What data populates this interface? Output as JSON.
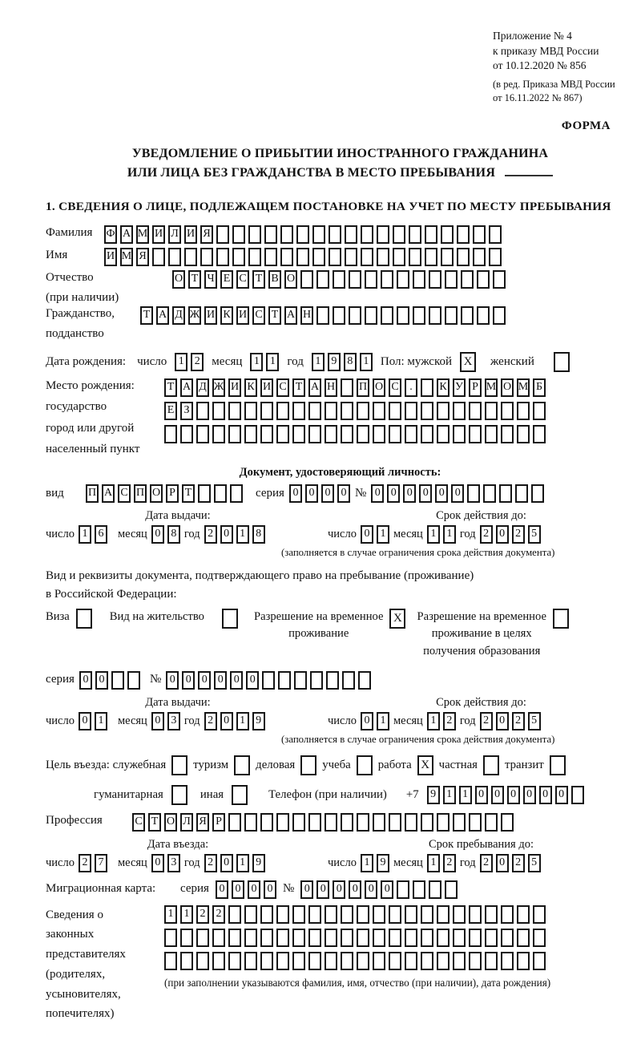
{
  "ref": {
    "l1": "Приложение № 4",
    "l2": "к приказу МВД России",
    "l3": "от 10.12.2020 № 856",
    "l4": "(в ред. Приказа МВД России",
    "l5": "от 16.11.2022 № 867)"
  },
  "form_label": "ФОРМА",
  "title": {
    "l1": "УВЕДОМЛЕНИЕ О ПРИБЫТИИ ИНОСТРАННОГО ГРАЖДАНИНА",
    "l2": "ИЛИ ЛИЦА БЕЗ ГРАЖДАНСТВА В МЕСТО ПРЕБЫВАНИЯ"
  },
  "section1_heading": "1. СВЕДЕНИЯ О ЛИЦЕ, ПОДЛЕЖАЩЕМ ПОСТАНОВКЕ НА УЧЕТ ПО МЕСТУ ПРЕБЫВАНИЯ",
  "labels": {
    "day": "число",
    "month": "месяц",
    "year": "год",
    "series": "серия",
    "number": "№",
    "issue_date": "Дата выдачи:",
    "valid_until": "Срок действия до:",
    "limit_note": "(заполняется в случае ограничения срока действия документа)"
  },
  "surname": {
    "label": "Фамилия",
    "cells": {
      "value": "ФАМИЛИЯ",
      "length": 25
    }
  },
  "firstname": {
    "label": "Имя",
    "cells": {
      "value": "ИМЯ",
      "length": 25
    }
  },
  "patronymic": {
    "label1": "Отчество",
    "label2": "(при наличии)",
    "cells": {
      "value": "ОТЧЕСТВО",
      "length": 21
    }
  },
  "citizenship": {
    "label1": "Гражданство,",
    "label2": "подданство",
    "cells": {
      "value": "ТАДЖИКИСТАН",
      "length": 23
    }
  },
  "birth_date": {
    "label": "Дата рождения:",
    "day": {
      "value": "12",
      "length": 2
    },
    "month": {
      "value": "11",
      "length": 2
    },
    "year": {
      "value": "1981",
      "length": 4
    },
    "sex_label": "Пол: мужской",
    "male_box": {
      "value": "X",
      "length": 1
    },
    "female_label": "женский",
    "female_box": {
      "value": "",
      "length": 1
    }
  },
  "birth_place": {
    "label1": "Место рождения:",
    "label2": "государство",
    "label3": "город или другой",
    "label4": "населенный пункт",
    "row1": {
      "value": "ТАДЖИКИСТАН ПОС. КУРМОМБ",
      "length": 24
    },
    "row2": {
      "value": "ЕЗ",
      "length": 24
    },
    "row3": {
      "value": "",
      "length": 24
    }
  },
  "id_doc": {
    "heading": "Документ, удостоверяющий личность:",
    "type_label": "вид",
    "type": {
      "value": "ПАСПОРТ",
      "length": 10
    },
    "series": {
      "value": "0000",
      "length": 4
    },
    "number": {
      "value": "000000",
      "length": 11
    },
    "issue": {
      "day": {
        "value": "16",
        "length": 2
      },
      "month": {
        "value": "08",
        "length": 2
      },
      "year": {
        "value": "2018",
        "length": 4
      }
    },
    "expiry": {
      "day": {
        "value": "01",
        "length": 2
      },
      "month": {
        "value": "11",
        "length": 2
      },
      "year": {
        "value": "2025",
        "length": 4
      }
    }
  },
  "residence": {
    "heading1": "Вид и реквизиты документа, подтверждающего право на пребывание (проживание)",
    "heading2": "в Российской Федерации:",
    "visa_label": "Виза",
    "visa_box": {
      "value": "",
      "length": 1
    },
    "vnj_label": "Вид на жительство",
    "vnj_box": {
      "value": "",
      "length": 1
    },
    "rvp_label1": "Разрешение на временное",
    "rvp_label2": "проживание",
    "rvp_box": {
      "value": "X",
      "length": 1
    },
    "rvpo_label1": "Разрешение на временное",
    "rvpo_label2": "проживание в целях",
    "rvpo_label3": "получения образования",
    "rvpo_box": {
      "value": "",
      "length": 1
    },
    "series": {
      "value": "00",
      "length": 4
    },
    "number": {
      "value": "000000",
      "length": 13
    },
    "issue": {
      "day": {
        "value": "01",
        "length": 2
      },
      "month": {
        "value": "03",
        "length": 2
      },
      "year": {
        "value": "2019",
        "length": 4
      }
    },
    "expiry": {
      "day": {
        "value": "01",
        "length": 2
      },
      "month": {
        "value": "12",
        "length": 2
      },
      "year": {
        "value": "2025",
        "length": 4
      }
    }
  },
  "purpose": {
    "label": "Цель въезда: служебная",
    "opt1_box": {
      "value": "",
      "length": 1
    },
    "opt2_label": "туризм",
    "opt2_box": {
      "value": "",
      "length": 1
    },
    "opt3_label": "деловая",
    "opt3_box": {
      "value": "",
      "length": 1
    },
    "opt4_label": "учеба",
    "opt4_box": {
      "value": "",
      "length": 1
    },
    "opt5_label": "работа",
    "opt5_box": {
      "value": "X",
      "length": 1
    },
    "opt6_label": "частная",
    "opt6_box": {
      "value": "",
      "length": 1
    },
    "opt7_label": "транзит",
    "opt7_box": {
      "value": "",
      "length": 1
    },
    "opt8_label": "гуманитарная",
    "opt8_box": {
      "value": "",
      "length": 1
    },
    "opt9_label": "иная",
    "opt9_box": {
      "value": "",
      "length": 1
    },
    "phone_label": "Телефон (при наличии)",
    "phone_prefix": "+7",
    "phone": {
      "value": "911000000",
      "length": 10
    }
  },
  "profession": {
    "label": "Профессия",
    "cells": {
      "value": "СТОЛЯР",
      "length": 24
    }
  },
  "entry": {
    "issue_heading": "Дата въезда:",
    "expiry_heading": "Срок пребывания до:",
    "issue": {
      "day": {
        "value": "27",
        "length": 2
      },
      "month": {
        "value": "03",
        "length": 2
      },
      "year": {
        "value": "2019",
        "length": 4
      }
    },
    "expiry": {
      "day": {
        "value": "19",
        "length": 2
      },
      "month": {
        "value": "12",
        "length": 2
      },
      "year": {
        "value": "2025",
        "length": 4
      }
    }
  },
  "migration_card": {
    "label": "Миграционная карта:",
    "series": {
      "value": "0000",
      "length": 4
    },
    "number": {
      "value": "000000",
      "length": 10
    }
  },
  "representatives": {
    "label1": "Сведения о",
    "label2": "законных",
    "label3": "представителях",
    "label4": "(родителях,",
    "label5": "усыновителях,",
    "label6": "попечителях)",
    "row1": {
      "value": "1122",
      "length": 24
    },
    "row2": {
      "value": "",
      "length": 24
    },
    "row3": {
      "value": "",
      "length": 24
    },
    "note": "(при заполнении указываются фамилия, имя, отчество (при наличии), дата рождения)"
  }
}
